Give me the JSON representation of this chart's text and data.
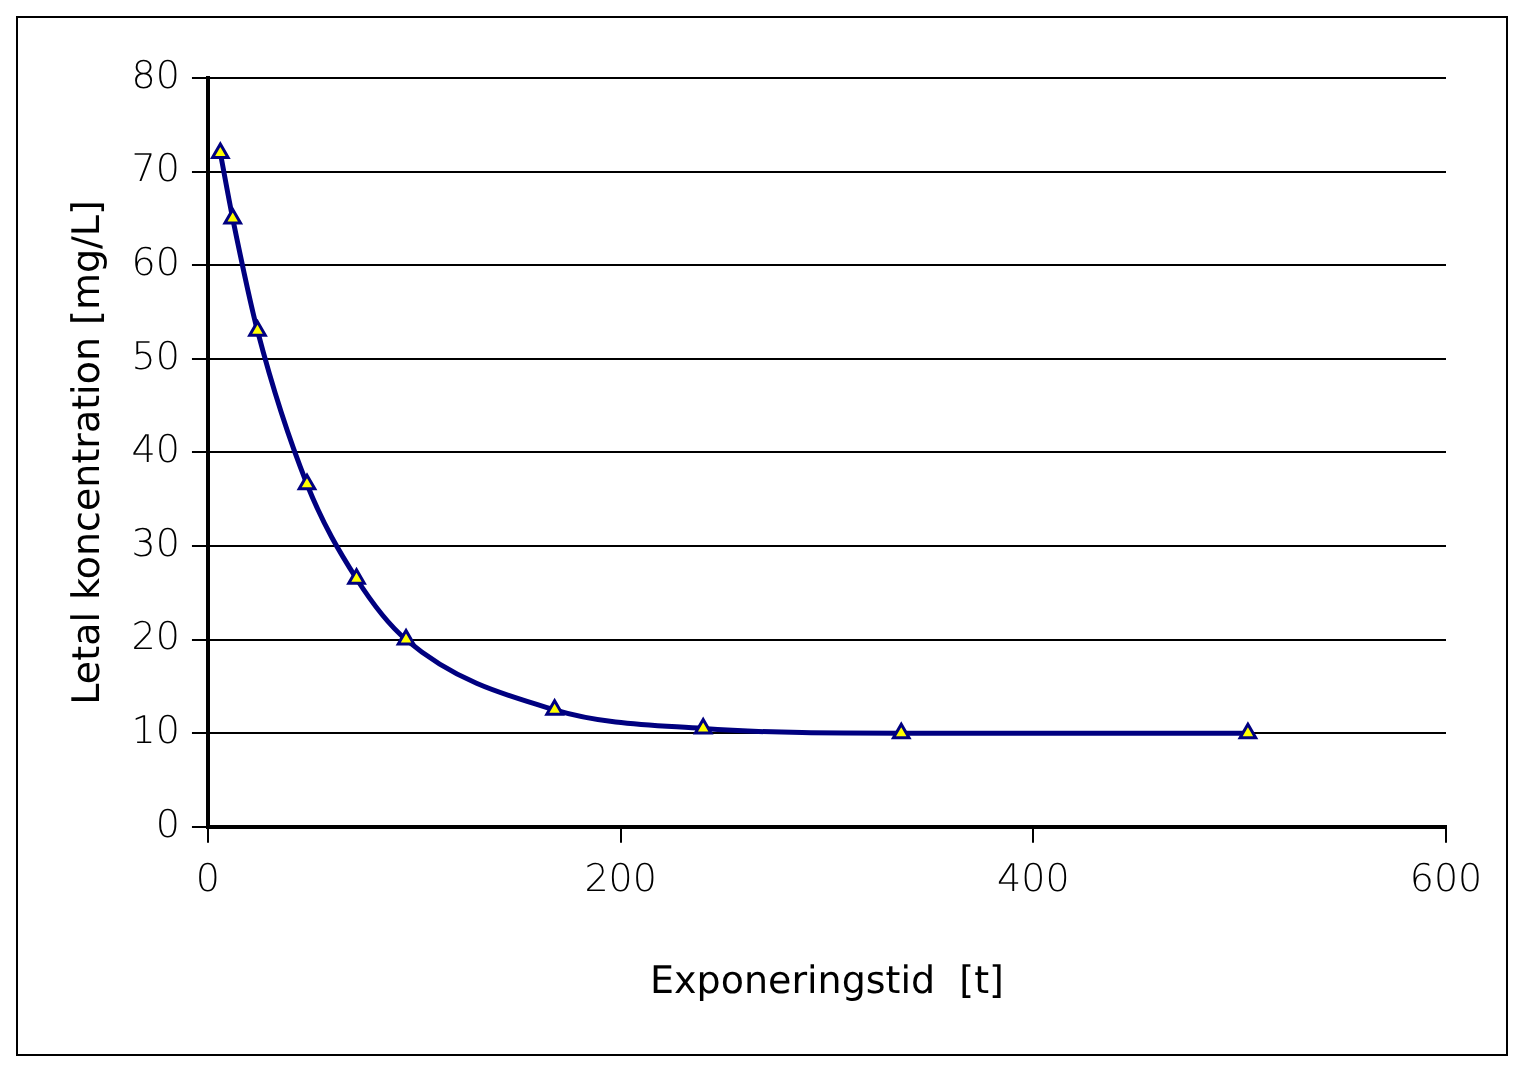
{
  "chart_data": {
    "type": "line",
    "xlabel": "Exponeringstid  [t]",
    "ylabel": "Letal koncentration [mg/L]",
    "x": [
      6,
      12,
      24,
      48,
      72,
      96,
      168,
      240,
      336,
      504
    ],
    "series": [
      {
        "color": "#000080",
        "values": [
          72,
          65,
          53,
          36.6,
          26.5,
          20,
          12.5,
          10.5,
          10,
          10
        ]
      }
    ],
    "xlim": [
      0,
      600
    ],
    "xticks": [
      0,
      200,
      400,
      600
    ],
    "ylim": [
      0,
      80
    ],
    "yticks": [
      0,
      10,
      20,
      30,
      40,
      50,
      60,
      70,
      80
    ],
    "grid": "y",
    "marker": "triangle",
    "line_style": "solid",
    "legend": false
  }
}
